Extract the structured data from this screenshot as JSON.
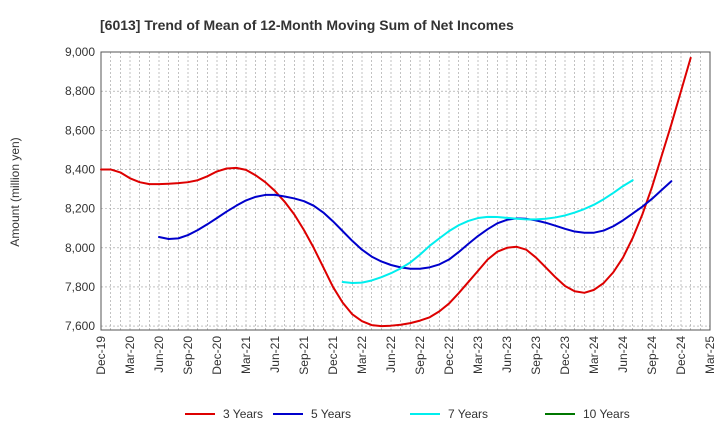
{
  "chart_data": {
    "type": "line",
    "title": "[6013]  Trend of Mean of 12-Month Moving Sum of Net Incomes",
    "ylabel": "Amount (million yen)",
    "xlabel": "",
    "ylim": [
      7580,
      9000
    ],
    "yticks": [
      7600,
      7800,
      8000,
      8200,
      8400,
      8600,
      8800,
      9000
    ],
    "ytick_labels": [
      "7,600",
      "7,800",
      "8,000",
      "8,200",
      "8,400",
      "8,600",
      "8,800",
      "9,000"
    ],
    "xticks": [
      "Dec-19",
      "Mar-20",
      "Jun-20",
      "Sep-20",
      "Dec-20",
      "Mar-21",
      "Jun-21",
      "Sep-21",
      "Dec-21",
      "Mar-22",
      "Jun-22",
      "Sep-22",
      "Dec-22",
      "Mar-23",
      "Jun-23",
      "Sep-23",
      "Dec-23",
      "Mar-24",
      "Jun-24",
      "Sep-24",
      "Dec-24",
      "Mar-25"
    ],
    "grid": true,
    "legend_position": "bottom",
    "series": [
      {
        "name": "3 Years",
        "color": "#dd0000",
        "x_start_index": 0,
        "values": [
          8400,
          8400,
          8385,
          8355,
          8335,
          8325,
          8325,
          8327,
          8330,
          8335,
          8345,
          8365,
          8390,
          8405,
          8408,
          8398,
          8370,
          8335,
          8290,
          8235,
          8170,
          8090,
          8000,
          7900,
          7800,
          7720,
          7660,
          7625,
          7605,
          7600,
          7602,
          7607,
          7615,
          7628,
          7645,
          7675,
          7715,
          7768,
          7825,
          7882,
          7940,
          7980,
          8000,
          8005,
          7990,
          7950,
          7900,
          7850,
          7805,
          7778,
          7770,
          7785,
          7820,
          7875,
          7950,
          8050,
          8170,
          8310,
          8470,
          8630,
          8800,
          8970
        ]
      },
      {
        "name": "5 Years",
        "color": "#0000cc",
        "x_start_index": 6,
        "values": [
          8055,
          8045,
          8048,
          8065,
          8090,
          8120,
          8152,
          8185,
          8215,
          8242,
          8260,
          8270,
          8270,
          8262,
          8252,
          8238,
          8215,
          8180,
          8135,
          8085,
          8035,
          7990,
          7955,
          7930,
          7912,
          7900,
          7893,
          7893,
          7900,
          7915,
          7940,
          7978,
          8020,
          8060,
          8095,
          8125,
          8143,
          8150,
          8148,
          8140,
          8128,
          8113,
          8097,
          8083,
          8077,
          8077,
          8088,
          8110,
          8140,
          8175,
          8210,
          8250,
          8295,
          8340
        ]
      },
      {
        "name": "7 Years",
        "color": "#00eeee",
        "x_start_index": 25,
        "values": [
          7825,
          7820,
          7822,
          7833,
          7850,
          7870,
          7895,
          7925,
          7965,
          8010,
          8048,
          8085,
          8115,
          8137,
          8152,
          8158,
          8157,
          8153,
          8148,
          8145,
          8145,
          8148,
          8155,
          8165,
          8180,
          8198,
          8220,
          8248,
          8280,
          8315,
          8345
        ]
      },
      {
        "name": "10 Years",
        "color": "#007700",
        "x_start_index": 0,
        "values": []
      }
    ]
  }
}
